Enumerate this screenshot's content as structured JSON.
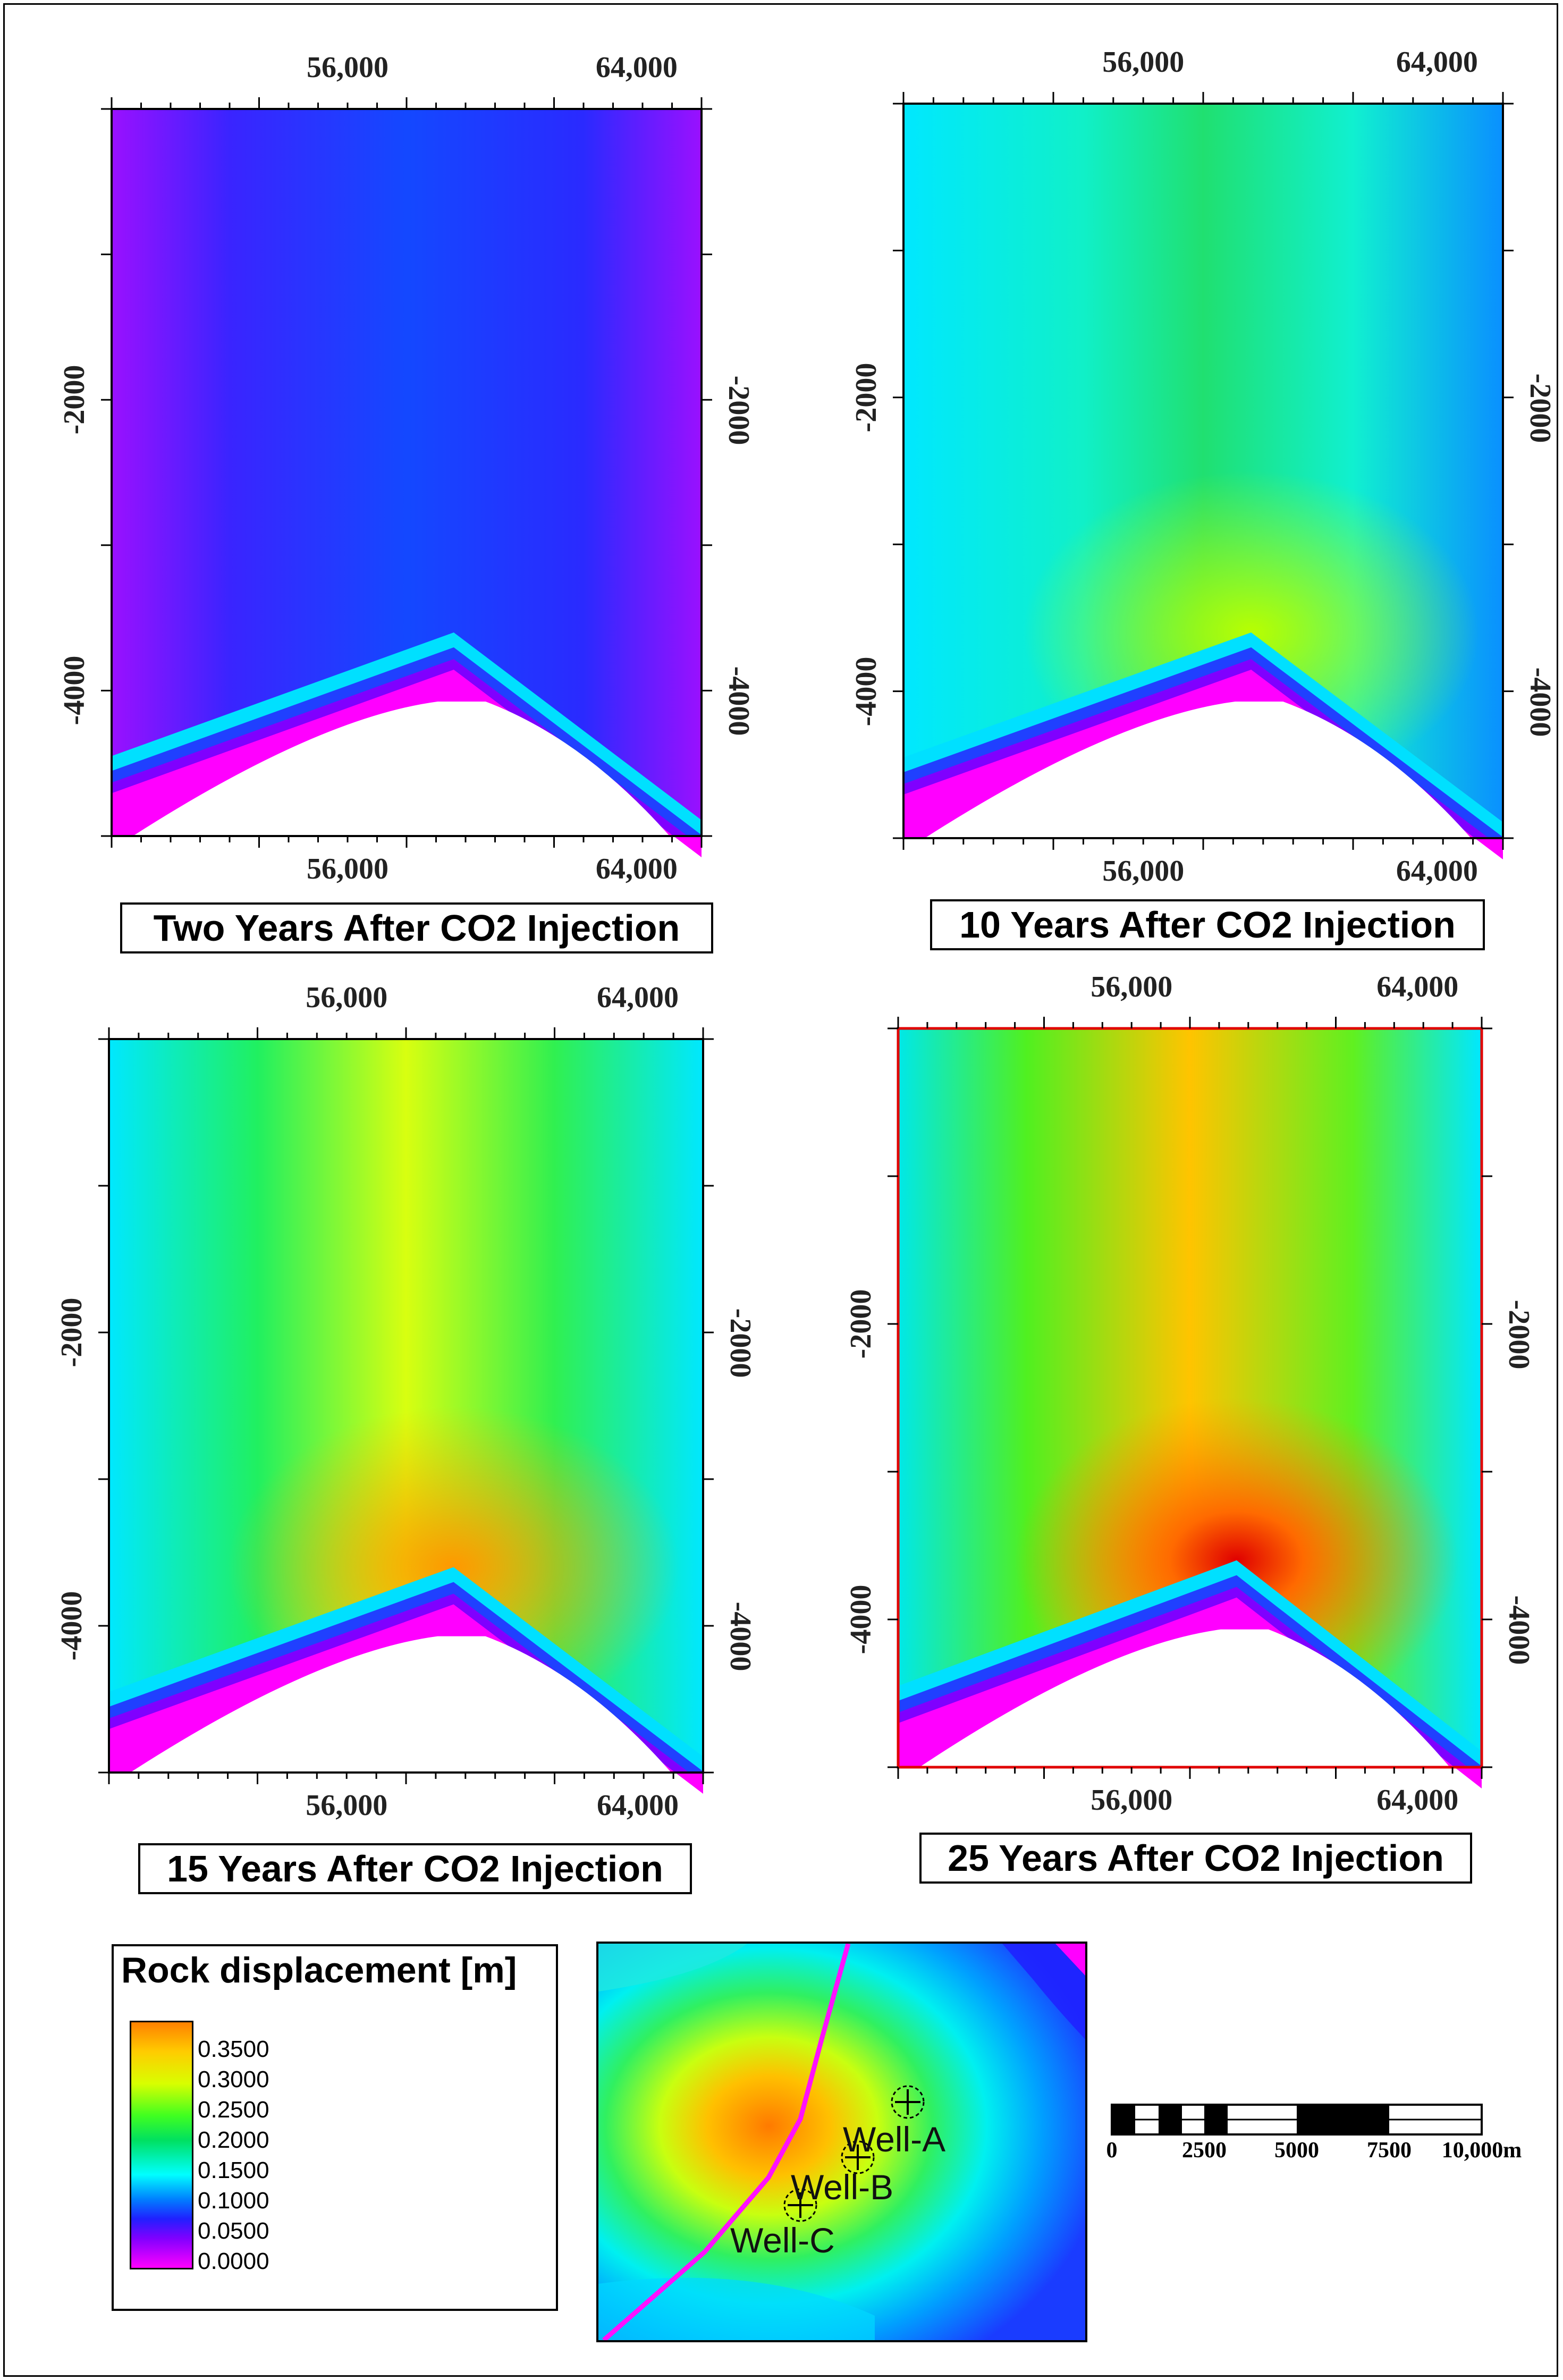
{
  "chart_data": [
    {
      "type": "heatmap",
      "title": "Two Years After CO2 Injection",
      "x_ticks": [
        "56,000",
        "64,000"
      ],
      "y_ticks": [
        "-2000",
        "-4000"
      ],
      "color_variable": "Rock displacement [m]",
      "max_displacement": 0.08,
      "fill": [
        "#5a00ff",
        "#3c1cf5",
        "#1448ff"
      ]
    },
    {
      "type": "heatmap",
      "title": "10 Years After CO2 Injection",
      "x_ticks": [
        "56,000",
        "64,000"
      ],
      "y_ticks": [
        "-2000",
        "-4000"
      ],
      "color_variable": "Rock displacement [m]",
      "max_displacement": 0.22,
      "fill": [
        "#0aa0ff",
        "#00f0ee",
        "#10f07a"
      ]
    },
    {
      "type": "heatmap",
      "title": "15 Years After CO2 Injection",
      "x_ticks": [
        "56,000",
        "64,000"
      ],
      "y_ticks": [
        "-2000",
        "-4000"
      ],
      "color_variable": "Rock displacement [m]",
      "max_displacement": 0.3,
      "fill": [
        "#00e8ff",
        "#20f060",
        "#e4ff00"
      ]
    },
    {
      "type": "heatmap",
      "title": "25 Years After CO2 Injection",
      "x_ticks": [
        "56,000",
        "64,000"
      ],
      "y_ticks": [
        "-2000",
        "-4000"
      ],
      "color_variable": "Rock displacement [m]",
      "max_displacement": 0.36,
      "fill": [
        "#00e8e8",
        "#60f020",
        "#ffd000"
      ]
    }
  ],
  "legend": {
    "title": "Rock displacement [m]",
    "labels": [
      "0.3500",
      "0.3000",
      "0.2500",
      "0.2000",
      "0.1500",
      "0.1000",
      "0.0500",
      "0.0000"
    ]
  },
  "inset_map": {
    "wells": [
      "Well-A",
      "Well-B",
      "Well-C"
    ]
  },
  "scale_bar": {
    "labels": [
      "0",
      "2500",
      "5000",
      "7500",
      "10,000m"
    ]
  }
}
